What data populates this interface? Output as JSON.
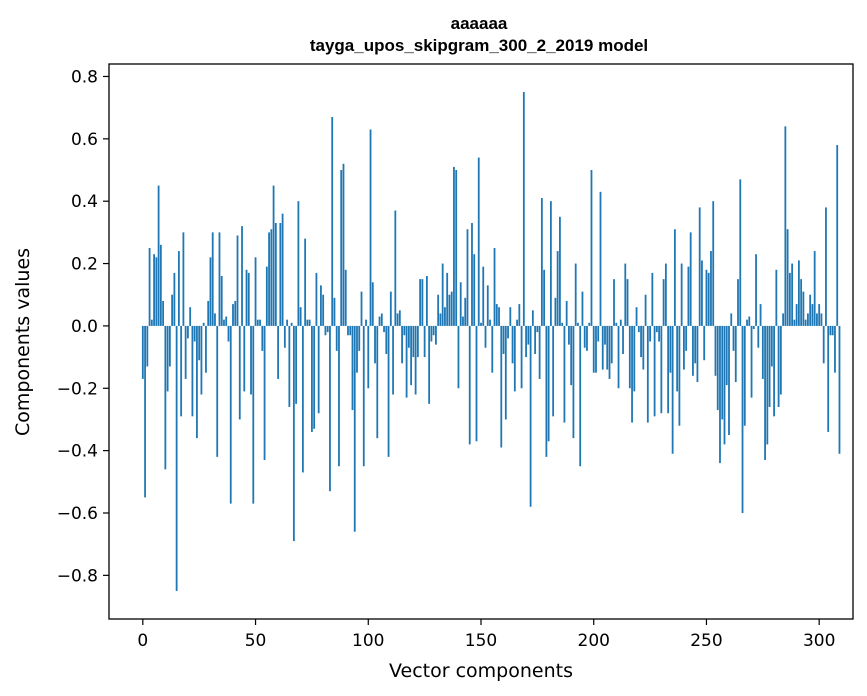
{
  "chart_data": {
    "type": "bar",
    "title": "aaaaaa",
    "subtitle": "tayga_upos_skipgram_300_2_2019 model",
    "xlabel": "Vector components",
    "ylabel": "Components values",
    "xlim": [
      -15,
      315
    ],
    "ylim": [
      -0.94,
      0.84
    ],
    "xticks": [
      0,
      50,
      100,
      150,
      200,
      250,
      300
    ],
    "xtick_labels": [
      "0",
      "50",
      "100",
      "150",
      "200",
      "250",
      "300"
    ],
    "yticks": [
      -0.8,
      -0.6,
      -0.4,
      -0.2,
      0.0,
      0.2,
      0.4,
      0.6,
      0.8
    ],
    "ytick_labels": [
      "−0.8",
      "−0.6",
      "−0.4",
      "−0.2",
      "0.0",
      "0.2",
      "0.4",
      "0.6",
      "0.8"
    ],
    "grid": false,
    "color": "#1f77b4",
    "values": [
      -0.17,
      -0.55,
      -0.13,
      0.25,
      0.02,
      0.23,
      0.22,
      0.45,
      0.26,
      0.08,
      -0.46,
      -0.21,
      -0.13,
      0.1,
      0.17,
      -0.85,
      0.24,
      -0.29,
      0.3,
      -0.17,
      -0.04,
      0.06,
      -0.29,
      -0.05,
      -0.36,
      -0.11,
      -0.22,
      0.01,
      -0.15,
      0.08,
      0.22,
      0.3,
      0.04,
      -0.42,
      0.3,
      0.16,
      0.02,
      0.03,
      -0.05,
      -0.57,
      0.07,
      0.08,
      0.29,
      -0.3,
      0.32,
      -0.21,
      0.18,
      0.17,
      -0.22,
      -0.57,
      0.22,
      0.02,
      0.02,
      -0.08,
      -0.43,
      0.19,
      0.3,
      0.31,
      0.45,
      0.33,
      -0.17,
      0.33,
      0.36,
      -0.07,
      0.02,
      -0.26,
      0.01,
      -0.69,
      -0.25,
      0.4,
      0.06,
      -0.47,
      0.28,
      0.02,
      0.02,
      -0.34,
      -0.33,
      0.17,
      -0.28,
      0.13,
      0.1,
      -0.03,
      -0.02,
      -0.53,
      0.67,
      0.09,
      -0.08,
      -0.45,
      0.5,
      0.52,
      0.18,
      -0.03,
      -0.03,
      -0.27,
      -0.66,
      -0.15,
      -0.08,
      0.11,
      -0.45,
      0.02,
      -0.2,
      0.63,
      0.14,
      -0.12,
      -0.36,
      0.03,
      0.04,
      -0.02,
      -0.09,
      -0.42,
      0.11,
      -0.22,
      0.37,
      0.04,
      0.05,
      -0.12,
      -0.03,
      -0.23,
      -0.07,
      -0.19,
      -0.1,
      -0.22,
      -0.1,
      0.15,
      0.15,
      -0.1,
      0.16,
      -0.25,
      -0.05,
      -0.03,
      -0.06,
      0.1,
      0.04,
      0.2,
      0.06,
      0.17,
      0.1,
      0.11,
      0.51,
      0.5,
      -0.2,
      0.14,
      0.03,
      0.09,
      0.31,
      -0.38,
      0.33,
      0.23,
      -0.37,
      0.54,
      0.01,
      0.19,
      -0.07,
      0.13,
      0.02,
      -0.15,
      0.25,
      0.07,
      0.06,
      -0.39,
      -0.09,
      -0.3,
      -0.04,
      0.06,
      -0.12,
      -0.21,
      0.02,
      0.07,
      -0.2,
      0.75,
      -0.1,
      -0.06,
      -0.58,
      0.05,
      -0.09,
      -0.02,
      -0.17,
      0.41,
      0.18,
      -0.42,
      -0.37,
      0.4,
      -0.29,
      0.09,
      0.24,
      0.35,
      0.01,
      -0.31,
      0.08,
      -0.06,
      -0.19,
      -0.36,
      0.2,
      0.01,
      -0.45,
      0.11,
      -0.07,
      -0.08,
      0.01,
      0.5,
      -0.15,
      -0.15,
      -0.05,
      0.43,
      -0.14,
      -0.06,
      -0.14,
      -0.17,
      -0.12,
      0.15,
      0.01,
      -0.2,
      0.02,
      -0.09,
      0.2,
      0.15,
      -0.2,
      -0.31,
      -0.21,
      0.06,
      -0.02,
      -0.1,
      -0.14,
      0.1,
      -0.31,
      -0.05,
      0.17,
      -0.29,
      -0.02,
      -0.05,
      -0.28,
      0.15,
      0.2,
      -0.28,
      -0.15,
      -0.41,
      0.31,
      -0.21,
      -0.32,
      0.2,
      -0.14,
      -0.08,
      0.19,
      0.3,
      -0.16,
      -0.12,
      -0.18,
      0.38,
      0.21,
      -0.11,
      0.18,
      0.17,
      0.24,
      0.4,
      -0.16,
      -0.27,
      -0.44,
      -0.3,
      -0.38,
      -0.19,
      -0.35,
      0.04,
      -0.08,
      -0.18,
      0.15,
      0.47,
      -0.6,
      -0.32,
      0.02,
      0.03,
      -0.23,
      -0.01,
      0.23,
      -0.07,
      0.07,
      -0.17,
      -0.43,
      -0.38,
      -0.26,
      -0.13,
      -0.29,
      0.18,
      -0.26,
      -0.22,
      0.04,
      0.64,
      0.31,
      0.17,
      0.2,
      0.02,
      0.07,
      0.21,
      0.15,
      0.11,
      0.02,
      0.04,
      0.1,
      0.07,
      0.24,
      0.04,
      0.07,
      0.04,
      -0.12,
      0.38,
      -0.34,
      -0.03,
      -0.03,
      -0.15,
      0.58,
      -0.41
    ]
  }
}
